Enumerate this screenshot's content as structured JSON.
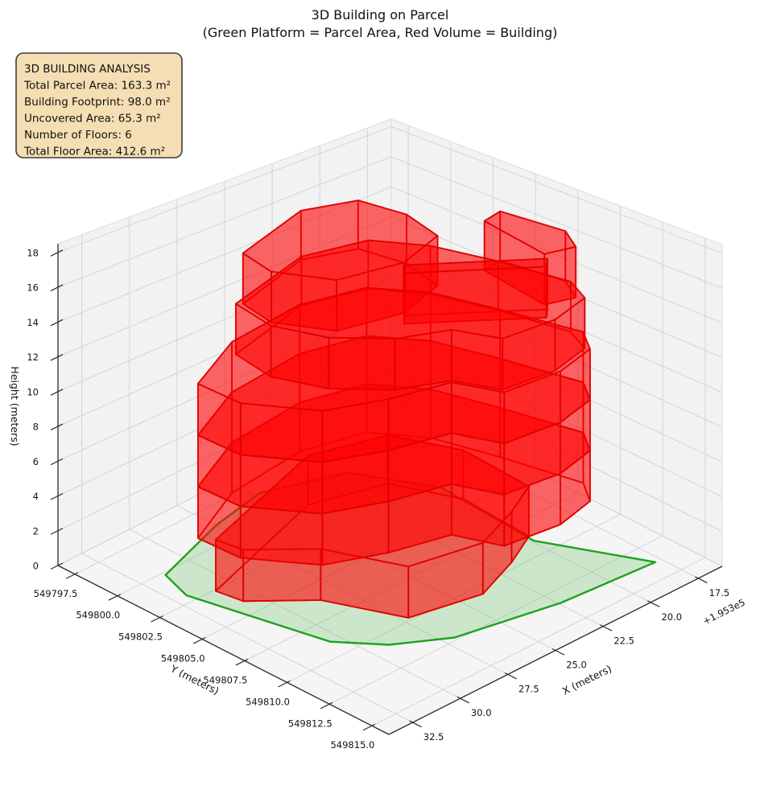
{
  "figure": {
    "title": "3D Building on Parcel",
    "subtitle": "(Green Platform = Parcel Area, Red Volume = Building)"
  },
  "info_box": {
    "lines": [
      "3D BUILDING ANALYSIS",
      "Total Parcel Area: 163.3 m²",
      "Building Footprint: 98.0 m²",
      "Uncovered Area: 65.3 m²",
      "Number of Floors: 6",
      "Total Floor Area: 412.6 m²"
    ],
    "bg": "#f5deb3",
    "border": "#3d3d3d"
  },
  "chart_data": {
    "type": "3d-surface-building",
    "title": "3D Building on Parcel",
    "subtitle": "(Green Platform = Parcel Area, Red Volume = Building)",
    "stats": {
      "total_parcel_area_m2": 163.3,
      "building_footprint_m2": 98.0,
      "uncovered_area_m2": 65.3,
      "number_of_floors": 6,
      "total_floor_area_m2": 412.6,
      "floor_height_m": 3.0,
      "building_height_m": 18.0
    },
    "axes": {
      "x": {
        "label": "X (meters)",
        "ticks": [
          32.5,
          30.0,
          27.5,
          25.0,
          22.5,
          20.0,
          17.5
        ],
        "offset_text": "+1.953e5",
        "range": [
          16.25,
          33.75
        ]
      },
      "y": {
        "label": "Y (meters)",
        "ticks": [
          549797.5,
          549800.0,
          549802.5,
          549805.0,
          549807.5,
          549810.0,
          549812.5,
          549815.0
        ],
        "range": [
          549796.5,
          549816.0
        ]
      },
      "z": {
        "label": "Height (meters)",
        "ticks": [
          0,
          2,
          4,
          6,
          8,
          10,
          12,
          14,
          16,
          18
        ],
        "range": [
          0,
          18.5
        ]
      }
    },
    "style": {
      "pane_fill": "#f2f2f2",
      "pane_edge": "#dcdcdc",
      "grid": "#d4d4d4",
      "spine": "#2b2b2b",
      "parcel_fill": "#5cbe5c",
      "parcel_fill_opacity": 0.28,
      "parcel_edge": "#1fa11f",
      "building_fill": "#ff0000",
      "building_fill_opacity": 0.36,
      "building_edge": "#e00000"
    },
    "parcel_polygon_xy": [
      [
        31.4,
        549800.2
      ],
      [
        27.5,
        549798.8
      ],
      [
        24.7,
        549798.2
      ],
      [
        21.3,
        549799.6
      ],
      [
        19.6,
        549803.2
      ],
      [
        19.9,
        549809.0
      ],
      [
        17.8,
        549813.8
      ],
      [
        22.4,
        549813.4
      ],
      [
        27.0,
        549812.3
      ],
      [
        29.1,
        549810.8
      ],
      [
        30.5,
        549808.9
      ],
      [
        31.9,
        549802.0
      ]
    ],
    "building": {
      "footprints": {
        "ground": [
          [
            30.9,
            549802.6
          ],
          [
            24.0,
            549800.3
          ],
          [
            20.8,
            549801.4
          ],
          [
            19.6,
            549804.5
          ],
          [
            19.8,
            549808.6
          ],
          [
            21.6,
            549809.6
          ],
          [
            24.0,
            549810.6
          ],
          [
            27.2,
            549809.8
          ],
          [
            28.6,
            549806.2
          ],
          [
            30.7,
            549804.0
          ]
        ],
        "main": [
          [
            31.3,
            549802.0
          ],
          [
            28.0,
            549800.3
          ],
          [
            24.0,
            549799.8
          ],
          [
            21.2,
            549800.6
          ],
          [
            19.8,
            549802.8
          ],
          [
            19.0,
            549806.0
          ],
          [
            18.2,
            549810.0
          ],
          [
            19.0,
            549811.3
          ],
          [
            21.0,
            549811.8
          ],
          [
            23.6,
            549811.4
          ],
          [
            24.4,
            549809.2
          ],
          [
            27.0,
            549808.4
          ],
          [
            29.4,
            549807.2
          ],
          [
            31.2,
            549804.4
          ]
        ],
        "upper": [
          [
            28.6,
            549801.2
          ],
          [
            24.0,
            549799.9
          ],
          [
            21.2,
            549800.7
          ],
          [
            19.9,
            549802.9
          ],
          [
            19.1,
            549806.0
          ],
          [
            18.5,
            549809.6
          ],
          [
            19.1,
            549811.1
          ],
          [
            21.1,
            549811.6
          ],
          [
            23.5,
            549811.2
          ],
          [
            24.3,
            549809.1
          ],
          [
            26.3,
            549808.0
          ],
          [
            28.0,
            549806.0
          ],
          [
            28.9,
            549803.6
          ]
        ],
        "towerA": [
          [
            28.4,
            549801.4
          ],
          [
            24.2,
            549800.1
          ],
          [
            22.0,
            549801.0
          ],
          [
            21.6,
            549803.4
          ],
          [
            22.1,
            549805.8
          ],
          [
            24.6,
            549806.6
          ],
          [
            27.4,
            549805.8
          ],
          [
            28.7,
            549803.4
          ]
        ],
        "finB": [
          [
            25.2,
            549807.3
          ],
          [
            21.2,
            549811.2
          ],
          [
            20.7,
            549810.7
          ],
          [
            24.7,
            549806.8
          ]
        ],
        "finC": [
          [
            19.0,
            549806.0
          ],
          [
            18.6,
            549809.4
          ],
          [
            19.3,
            549810.8
          ],
          [
            20.5,
            549810.3
          ],
          [
            20.0,
            549806.2
          ]
        ]
      },
      "volumes": [
        {
          "z0": 0,
          "z1": 3,
          "footprint": "ground"
        },
        {
          "z0": 3,
          "z1": 6,
          "footprint": "main"
        },
        {
          "z0": 6,
          "z1": 9,
          "footprint": "main"
        },
        {
          "z0": 9,
          "z1": 12,
          "footprint": "main"
        },
        {
          "z0": 12,
          "z1": 15,
          "footprint": "upper"
        },
        {
          "z0": 15,
          "z1": 18,
          "footprint": "towerA"
        },
        {
          "z0": 15,
          "z1": 18,
          "footprint": "finB"
        },
        {
          "z0": 15,
          "z1": 18,
          "footprint": "finC"
        }
      ]
    }
  }
}
